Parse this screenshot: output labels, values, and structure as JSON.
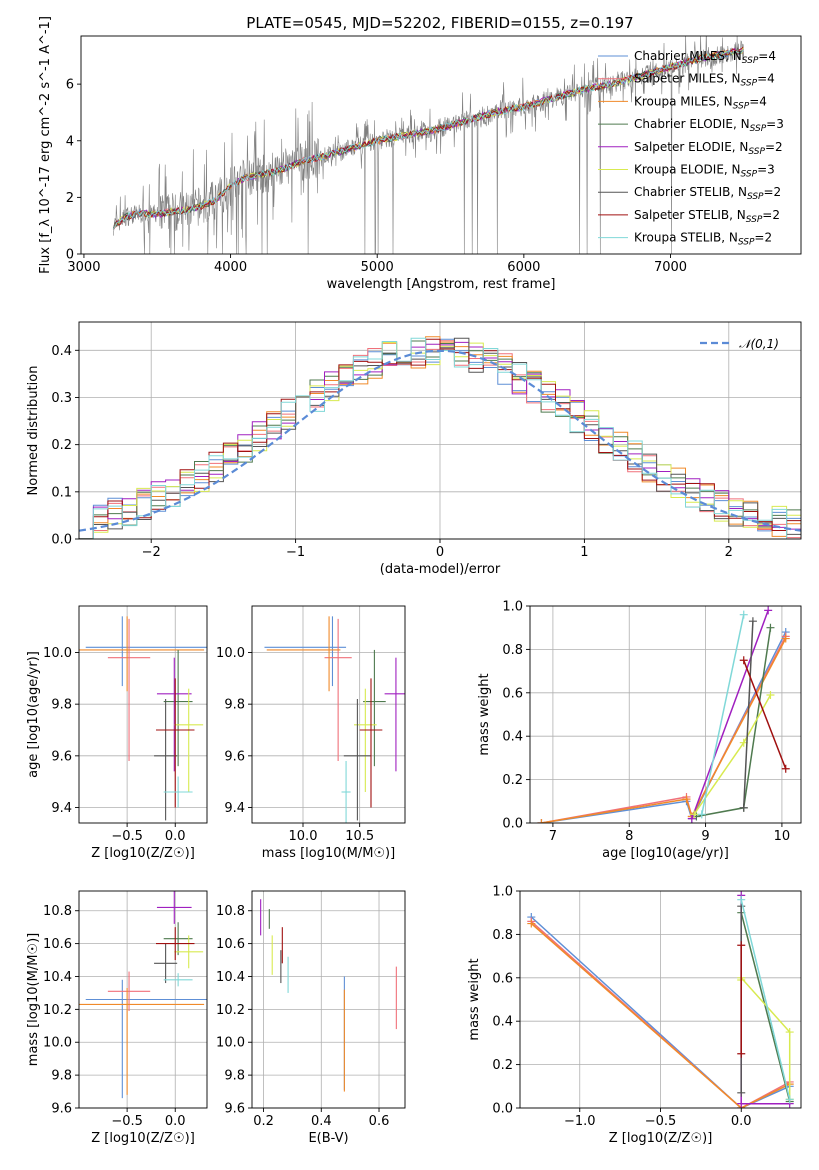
{
  "title": "PLATE=0545, MJD=52202, FIBERID=0155, z=0.197",
  "colors": {
    "Chabrier MILES": "#5e8fd6",
    "Salpeter MILES": "#f0707a",
    "Kroupa MILES": "#f08a2a",
    "Chabrier ELODIE": "#4f7a4f",
    "Salpeter ELODIE": "#a020c0",
    "Kroupa ELODIE": "#d8ea50",
    "Chabrier STELIB": "#555555",
    "Salpeter STELIB": "#a01010",
    "Kroupa STELIB": "#80d8d8",
    "data": "#808080",
    "normal": "#5b8bd6"
  },
  "spectrum_legend": [
    "Chabrier MILES, N_SSP=4",
    "Salpeter MILES, N_SSP=4",
    "Kroupa MILES, N_SSP=4",
    "Chabrier ELODIE, N_SSP=3",
    "Salpeter ELODIE, N_SSP=2",
    "Kroupa ELODIE, N_SSP=3",
    "Chabrier STELIB, N_SSP=2",
    "Salpeter STELIB, N_SSP=2",
    "Kroupa STELIB, N_SSP=2"
  ],
  "hist_legend": "𝒩(0,1)",
  "chart_data": [
    {
      "type": "line",
      "panel": "spectrum",
      "xlabel": "wavelength [Angstrom, rest frame]",
      "ylabel": "Flux [f_λ 10^-17 erg cm^-2 s^-1 A^-1]",
      "xlim": [
        2980,
        7890
      ],
      "ylim": [
        0,
        7.7
      ],
      "xticks": [
        3000,
        4000,
        5000,
        6000,
        7000
      ],
      "yticks": [
        0,
        2,
        4,
        6
      ],
      "grid": false,
      "legend": "upper-right",
      "data_range": [
        3200,
        7500
      ],
      "model_flux": {
        "x": [
          3200,
          3300,
          3400,
          3500,
          3600,
          3700,
          3800,
          3900,
          4000,
          4100,
          4200,
          4300,
          4400,
          4500,
          4600,
          4800,
          5000,
          5200,
          5400,
          5600,
          5800,
          6000,
          6200,
          6400,
          6600,
          6800,
          7000,
          7200,
          7400,
          7500
        ],
        "y": [
          1.0,
          1.35,
          1.45,
          1.4,
          1.5,
          1.55,
          1.7,
          1.9,
          2.4,
          2.7,
          2.8,
          2.9,
          3.1,
          3.3,
          3.4,
          3.7,
          4.0,
          4.2,
          4.4,
          4.7,
          5.0,
          5.2,
          5.5,
          5.8,
          6.0,
          6.3,
          6.6,
          6.9,
          7.1,
          7.2
        ]
      }
    },
    {
      "type": "line",
      "panel": "residual histogram",
      "xlabel": "(data-model)/error",
      "ylabel": "Normed distribution",
      "xlim": [
        -2.5,
        2.5
      ],
      "ylim": [
        0,
        0.46
      ],
      "xticks": [
        -2,
        -1,
        0,
        1,
        2
      ],
      "yticks": [
        0.0,
        0.1,
        0.2,
        0.3,
        0.4
      ],
      "grid": true,
      "legend": "upper-right",
      "series": [
        {
          "name": "𝒩(0,1)",
          "style": "dashed",
          "mu": 0,
          "sigma": 1
        }
      ],
      "histogram_bins": {
        "start": -2.5,
        "width": 0.1,
        "count": 50
      }
    },
    {
      "type": "scatter",
      "panel": "age vs Z",
      "xlabel": "Z [log10(Z/Z☉)]",
      "ylabel": "age [log10(age/yr)]",
      "xlim": [
        -1.0,
        0.33
      ],
      "ylim": [
        9.34,
        10.18
      ],
      "xticks": [
        -0.5,
        0.0
      ],
      "yticks": [
        9.4,
        9.6,
        9.8,
        10.0
      ],
      "grid": true,
      "points": [
        {
          "model": "Chabrier MILES",
          "x": -0.55,
          "y": 10.02,
          "xerr": [
            0.38,
            0.88
          ],
          "yerr": [
            0.15,
            0.12
          ]
        },
        {
          "model": "Salpeter MILES",
          "x": -0.48,
          "y": 9.98,
          "xerr": [
            0.22,
            0.22
          ],
          "yerr": [
            0.4,
            0.15
          ]
        },
        {
          "model": "Kroupa MILES",
          "x": -0.5,
          "y": 10.01,
          "xerr": [
            0.8,
            0.8
          ],
          "yerr": [
            0.16,
            0.13
          ]
        },
        {
          "model": "Chabrier ELODIE",
          "x": 0.03,
          "y": 9.81,
          "xerr": [
            0.15,
            0.15
          ],
          "yerr": [
            0.25,
            0.2
          ]
        },
        {
          "model": "Salpeter ELODIE",
          "x": -0.01,
          "y": 9.84,
          "xerr": [
            0.18,
            0.18
          ],
          "yerr": [
            0.3,
            0.14
          ]
        },
        {
          "model": "Kroupa ELODIE",
          "x": 0.14,
          "y": 9.72,
          "xerr": [
            0.15,
            0.15
          ],
          "yerr": [
            0.26,
            0.14
          ]
        },
        {
          "model": "Chabrier STELIB",
          "x": -0.1,
          "y": 9.6,
          "xerr": [
            0.12,
            0.12
          ],
          "yerr": [
            0.25,
            0.22
          ]
        },
        {
          "model": "Salpeter STELIB",
          "x": 0.0,
          "y": 9.7,
          "xerr": [
            0.2,
            0.2
          ],
          "yerr": [
            0.3,
            0.2
          ]
        },
        {
          "model": "Kroupa STELIB",
          "x": 0.03,
          "y": 9.46,
          "xerr": [
            0.15,
            0.15
          ],
          "yerr": [
            0.06,
            0.06
          ]
        }
      ]
    },
    {
      "type": "scatter",
      "panel": "age vs mass",
      "xlabel": "mass [log10(M/M☉)]",
      "ylabel": "",
      "xlim": [
        9.55,
        10.9
      ],
      "ylim": [
        9.34,
        10.18
      ],
      "xticks": [
        10.0,
        10.5
      ],
      "yticks": [
        9.4,
        9.6,
        9.8,
        10.0
      ],
      "grid": true,
      "points": [
        {
          "model": "Chabrier MILES",
          "x": 10.26,
          "y": 10.02,
          "xerr": [
            0.6,
            0.12
          ],
          "yerr": [
            0.15,
            0.12
          ]
        },
        {
          "model": "Salpeter MILES",
          "x": 10.31,
          "y": 9.98,
          "xerr": [
            0.12,
            0.12
          ],
          "yerr": [
            0.4,
            0.15
          ]
        },
        {
          "model": "Kroupa MILES",
          "x": 10.23,
          "y": 10.01,
          "xerr": [
            0.55,
            0.1
          ],
          "yerr": [
            0.16,
            0.13
          ]
        },
        {
          "model": "Chabrier ELODIE",
          "x": 10.63,
          "y": 9.81,
          "xerr": [
            0.1,
            0.1
          ],
          "yerr": [
            0.25,
            0.2
          ]
        },
        {
          "model": "Salpeter ELODIE",
          "x": 10.82,
          "y": 9.84,
          "xerr": [
            0.1,
            0.1
          ],
          "yerr": [
            0.3,
            0.14
          ]
        },
        {
          "model": "Kroupa ELODIE",
          "x": 10.55,
          "y": 9.72,
          "xerr": [
            0.1,
            0.1
          ],
          "yerr": [
            0.26,
            0.14
          ]
        },
        {
          "model": "Chabrier STELIB",
          "x": 10.48,
          "y": 9.6,
          "xerr": [
            0.12,
            0.12
          ],
          "yerr": [
            0.25,
            0.22
          ]
        },
        {
          "model": "Salpeter STELIB",
          "x": 10.6,
          "y": 9.7,
          "xerr": [
            0.1,
            0.1
          ],
          "yerr": [
            0.3,
            0.2
          ]
        },
        {
          "model": "Kroupa STELIB",
          "x": 10.38,
          "y": 9.46,
          "xerr": [
            0.04,
            0.04
          ],
          "yerr": [
            0.12,
            0.12
          ]
        }
      ]
    },
    {
      "type": "line",
      "panel": "mass weight vs age",
      "xlabel": "age [log10(age/yr)]",
      "ylabel": "mass weight",
      "xlim": [
        6.7,
        10.25
      ],
      "ylim": [
        0,
        1
      ],
      "xticks": [
        7,
        8,
        9,
        10
      ],
      "yticks": [
        0.0,
        0.2,
        0.4,
        0.6,
        0.8,
        1.0
      ],
      "grid": true,
      "series": [
        {
          "name": "Chabrier MILES",
          "x": [
            6.85,
            8.75,
            8.82,
            10.05
          ],
          "y": [
            0.0,
            0.1,
            0.02,
            0.88
          ]
        },
        {
          "name": "Salpeter MILES",
          "x": [
            6.85,
            8.75,
            8.82,
            10.05
          ],
          "y": [
            0.0,
            0.12,
            0.03,
            0.86
          ]
        },
        {
          "name": "Kroupa MILES",
          "x": [
            6.85,
            8.75,
            8.82,
            10.05
          ],
          "y": [
            0.0,
            0.11,
            0.03,
            0.85
          ]
        },
        {
          "name": "Chabrier ELODIE",
          "x": [
            8.88,
            9.5,
            9.85
          ],
          "y": [
            0.03,
            0.07,
            0.9
          ]
        },
        {
          "name": "Salpeter ELODIE",
          "x": [
            8.82,
            9.82
          ],
          "y": [
            0.02,
            0.98
          ]
        },
        {
          "name": "Kroupa ELODIE",
          "x": [
            8.85,
            9.5,
            9.85
          ],
          "y": [
            0.04,
            0.37,
            0.59
          ]
        },
        {
          "name": "Chabrier STELIB",
          "x": [
            9.5,
            9.62
          ],
          "y": [
            0.07,
            0.93
          ]
        },
        {
          "name": "Salpeter STELIB",
          "x": [
            9.5,
            10.05
          ],
          "y": [
            0.75,
            0.25
          ]
        },
        {
          "name": "Kroupa STELIB",
          "x": [
            8.95,
            9.5
          ],
          "y": [
            0.04,
            0.96
          ]
        }
      ]
    },
    {
      "type": "scatter",
      "panel": "mass vs Z",
      "xlabel": "Z [log10(Z/Z☉)]",
      "ylabel": "mass [log10(M/M☉)]",
      "xlim": [
        -1.0,
        0.33
      ],
      "ylim": [
        9.6,
        10.92
      ],
      "xticks": [
        -0.5,
        0.0
      ],
      "yticks": [
        9.6,
        9.8,
        10.0,
        10.2,
        10.4,
        10.6,
        10.8
      ],
      "grid": true,
      "points": [
        {
          "model": "Chabrier MILES",
          "x": -0.55,
          "y": 10.26,
          "xerr": [
            0.38,
            0.88
          ],
          "yerr": [
            0.6,
            0.12
          ]
        },
        {
          "model": "Salpeter MILES",
          "x": -0.48,
          "y": 10.31,
          "xerr": [
            0.22,
            0.22
          ],
          "yerr": [
            0.12,
            0.12
          ]
        },
        {
          "model": "Kroupa MILES",
          "x": -0.5,
          "y": 10.23,
          "xerr": [
            0.8,
            0.8
          ],
          "yerr": [
            0.55,
            0.1
          ]
        },
        {
          "model": "Chabrier ELODIE",
          "x": 0.03,
          "y": 10.63,
          "xerr": [
            0.15,
            0.15
          ],
          "yerr": [
            0.1,
            0.1
          ]
        },
        {
          "model": "Salpeter ELODIE",
          "x": -0.01,
          "y": 10.82,
          "xerr": [
            0.18,
            0.18
          ],
          "yerr": [
            0.1,
            0.1
          ]
        },
        {
          "model": "Kroupa ELODIE",
          "x": 0.14,
          "y": 10.55,
          "xerr": [
            0.15,
            0.15
          ],
          "yerr": [
            0.1,
            0.1
          ]
        },
        {
          "model": "Chabrier STELIB",
          "x": -0.1,
          "y": 10.48,
          "xerr": [
            0.12,
            0.12
          ],
          "yerr": [
            0.12,
            0.12
          ]
        },
        {
          "model": "Salpeter STELIB",
          "x": 0.0,
          "y": 10.6,
          "xerr": [
            0.2,
            0.2
          ],
          "yerr": [
            0.1,
            0.1
          ]
        },
        {
          "model": "Kroupa STELIB",
          "x": 0.03,
          "y": 10.38,
          "xerr": [
            0.15,
            0.15
          ],
          "yerr": [
            0.04,
            0.04
          ]
        }
      ]
    },
    {
      "type": "scatter",
      "panel": "mass vs E(B-V)",
      "xlabel": "E(B-V)",
      "ylabel": "",
      "xlim": [
        0.16,
        0.69
      ],
      "ylim": [
        9.6,
        10.92
      ],
      "xticks": [
        0.2,
        0.4,
        0.6
      ],
      "yticks": [
        9.6,
        9.8,
        10.0,
        10.2,
        10.4,
        10.6,
        10.8
      ],
      "grid": true,
      "points": [
        {
          "model": "Chabrier MILES",
          "x": 0.48,
          "y": 10.26,
          "xerr": [
            0,
            0
          ],
          "yerr": [
            0.55,
            0.14
          ]
        },
        {
          "model": "Salpeter MILES",
          "x": 0.66,
          "y": 10.3,
          "xerr": [
            0,
            0
          ],
          "yerr": [
            0.22,
            0.16
          ]
        },
        {
          "model": "Kroupa MILES",
          "x": 0.48,
          "y": 10.2,
          "xerr": [
            0,
            0
          ],
          "yerr": [
            0.5,
            0.12
          ]
        },
        {
          "model": "Chabrier ELODIE",
          "x": 0.22,
          "y": 10.75,
          "xerr": [
            0,
            0
          ],
          "yerr": [
            0.06,
            0.06
          ]
        },
        {
          "model": "Salpeter ELODIE",
          "x": 0.19,
          "y": 10.79,
          "xerr": [
            0,
            0
          ],
          "yerr": [
            0.14,
            0.08
          ]
        },
        {
          "model": "Kroupa ELODIE",
          "x": 0.23,
          "y": 10.55,
          "xerr": [
            0,
            0
          ],
          "yerr": [
            0.14,
            0.1
          ]
        },
        {
          "model": "Chabrier STELIB",
          "x": 0.26,
          "y": 10.48,
          "xerr": [
            0,
            0
          ],
          "yerr": [
            0.12,
            0.08
          ]
        },
        {
          "model": "Salpeter STELIB",
          "x": 0.265,
          "y": 10.58,
          "xerr": [
            0,
            0
          ],
          "yerr": [
            0.1,
            0.12
          ]
        },
        {
          "model": "Kroupa STELIB",
          "x": 0.285,
          "y": 10.4,
          "xerr": [
            0,
            0
          ],
          "yerr": [
            0.1,
            0.12
          ]
        }
      ]
    },
    {
      "type": "line",
      "panel": "mass weight vs Z",
      "xlabel": "Z [log10(Z/Z☉)]",
      "ylabel": "mass weight",
      "xlim": [
        -1.37,
        0.37
      ],
      "ylim": [
        0,
        1
      ],
      "xticks": [
        -1.0,
        -0.5,
        0.0
      ],
      "yticks": [
        0.0,
        0.2,
        0.4,
        0.6,
        0.8,
        1.0
      ],
      "grid": true,
      "series": [
        {
          "name": "Chabrier MILES",
          "x": [
            -1.3,
            0.0,
            0.3
          ],
          "y": [
            0.88,
            0.0,
            0.1
          ]
        },
        {
          "name": "Salpeter MILES",
          "x": [
            -1.3,
            0.0,
            0.3
          ],
          "y": [
            0.86,
            0.0,
            0.12
          ]
        },
        {
          "name": "Kroupa MILES",
          "x": [
            -1.3,
            0.0,
            0.3
          ],
          "y": [
            0.85,
            0.0,
            0.11
          ]
        },
        {
          "name": "Chabrier ELODIE",
          "x": [
            0.0,
            0.3
          ],
          "y": [
            0.9,
            0.03
          ]
        },
        {
          "name": "Salpeter ELODIE",
          "x": [
            0.0,
            0.0,
            0.3
          ],
          "y": [
            0.98,
            0.02,
            0.02
          ]
        },
        {
          "name": "Kroupa ELODIE",
          "x": [
            0.0,
            0.0,
            0.3,
            0.3
          ],
          "y": [
            0.59,
            0.6,
            0.35,
            0.04
          ]
        },
        {
          "name": "Chabrier STELIB",
          "x": [
            0.0,
            0.0
          ],
          "y": [
            0.07,
            0.93
          ]
        },
        {
          "name": "Salpeter STELIB",
          "x": [
            0.0,
            0.0
          ],
          "y": [
            0.25,
            0.75
          ]
        },
        {
          "name": "Kroupa STELIB",
          "x": [
            0.0,
            0.3
          ],
          "y": [
            0.96,
            0.04
          ]
        }
      ]
    }
  ]
}
